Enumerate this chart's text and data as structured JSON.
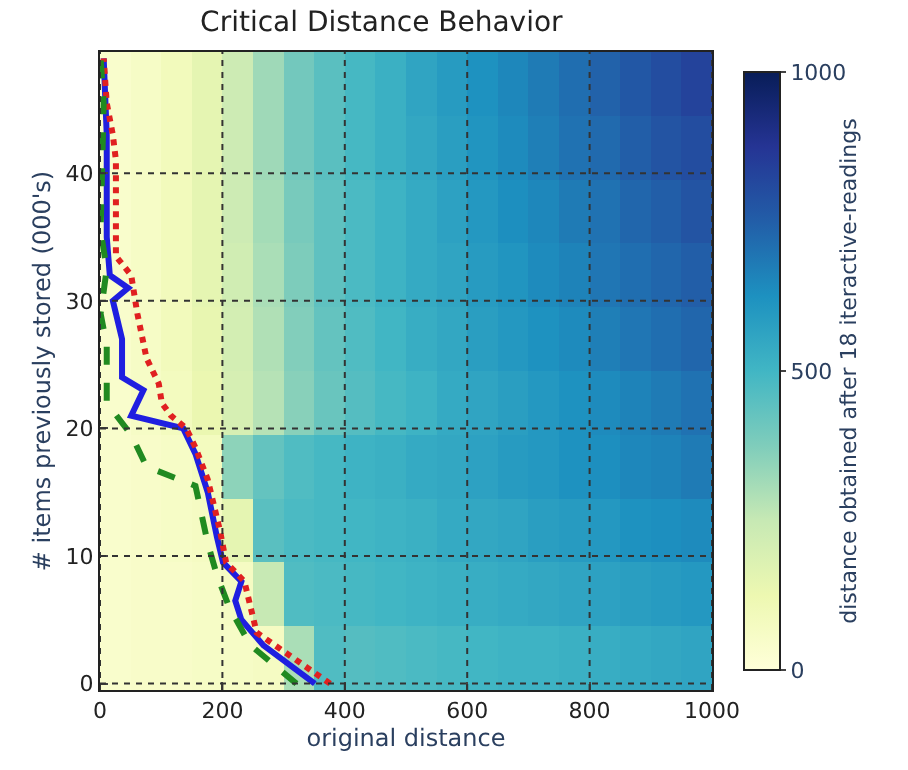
{
  "chart_data": {
    "type": "heatmap",
    "title": "Critical Distance Behavior",
    "xlabel": "original distance",
    "ylabel": "# items previously stored (000's)",
    "clabel": "distance obtained after 18 iteractive-readings",
    "x": [
      25,
      75,
      125,
      175,
      225,
      275,
      325,
      375,
      425,
      475,
      525,
      575,
      625,
      675,
      725,
      775,
      825,
      875,
      925,
      975
    ],
    "y": [
      47,
      42,
      37,
      32,
      27,
      22,
      17,
      12,
      7,
      2
    ],
    "cells": [
      [
        40,
        60,
        90,
        150,
        230,
        320,
        400,
        450,
        490,
        520,
        560,
        590,
        620,
        650,
        680,
        710,
        740,
        770,
        800,
        830
      ],
      [
        40,
        60,
        90,
        150,
        230,
        320,
        400,
        450,
        490,
        520,
        550,
        580,
        610,
        640,
        670,
        700,
        720,
        750,
        780,
        800
      ],
      [
        40,
        60,
        90,
        150,
        230,
        310,
        390,
        440,
        480,
        510,
        540,
        570,
        600,
        630,
        650,
        680,
        700,
        730,
        750,
        780
      ],
      [
        40,
        60,
        90,
        150,
        220,
        300,
        380,
        440,
        480,
        510,
        540,
        560,
        590,
        610,
        640,
        660,
        690,
        710,
        730,
        750
      ],
      [
        40,
        60,
        90,
        140,
        210,
        290,
        370,
        430,
        470,
        500,
        530,
        550,
        580,
        600,
        620,
        640,
        670,
        690,
        710,
        730
      ],
      [
        40,
        60,
        80,
        130,
        200,
        280,
        360,
        420,
        460,
        490,
        510,
        540,
        560,
        580,
        600,
        620,
        640,
        660,
        680,
        700
      ],
      [
        40,
        50,
        60,
        80,
        350,
        430,
        470,
        490,
        510,
        520,
        540,
        550,
        570,
        590,
        600,
        620,
        630,
        650,
        660,
        680
      ],
      [
        40,
        50,
        60,
        70,
        150,
        450,
        480,
        490,
        500,
        510,
        520,
        540,
        550,
        560,
        580,
        590,
        600,
        620,
        630,
        640
      ],
      [
        40,
        50,
        50,
        60,
        70,
        250,
        470,
        480,
        490,
        500,
        510,
        520,
        530,
        540,
        550,
        560,
        570,
        580,
        590,
        600
      ],
      [
        40,
        50,
        50,
        60,
        60,
        70,
        300,
        470,
        460,
        470,
        480,
        490,
        500,
        510,
        510,
        520,
        530,
        540,
        550,
        560
      ]
    ],
    "clim": [
      0,
      1000
    ],
    "cticks": [
      0,
      500,
      1000
    ],
    "xlim": [
      0,
      1000
    ],
    "xticks": [
      0,
      200,
      400,
      600,
      800,
      1000
    ],
    "ylim": [
      -0.5,
      49.5
    ],
    "yticks": [
      0,
      10,
      20,
      30,
      40
    ],
    "grid": true,
    "marker": "none",
    "series": [
      {
        "type": "line",
        "color": "#1f1fe0",
        "line_style": "solid",
        "x": [
          351,
          267,
          231,
          221,
          231,
          201,
          191,
          176,
          156,
          136,
          51,
          71,
          36,
          36,
          21,
          46,
          16,
          11,
          11,
          11,
          6
        ],
        "values": [
          0,
          3,
          5,
          6.5,
          8,
          9.5,
          11.5,
          15,
          18,
          20,
          21,
          23,
          24,
          27,
          30,
          31,
          32,
          35,
          40,
          43,
          49
        ]
      },
      {
        "type": "line",
        "color": "#e02020",
        "line_style": "dotted",
        "x": [
          376,
          316,
          256,
          236,
          206,
          196,
          176,
          156,
          141,
          116,
          101,
          96,
          76,
          61,
          51,
          26,
          26,
          26,
          21,
          11,
          6
        ],
        "values": [
          0,
          2,
          4,
          8,
          9.5,
          12,
          16,
          18.5,
          20,
          21,
          22,
          23.5,
          25.5,
          29,
          32,
          33.5,
          39,
          41,
          43,
          45.5,
          49
        ]
      },
      {
        "type": "line",
        "color": "#208a20",
        "line_style": "dashed",
        "x": [
          321,
          246,
          211,
          191,
          176,
          156,
          76,
          51,
          11,
          11,
          1,
          11,
          1,
          6,
          1
        ],
        "values": [
          0,
          3,
          6,
          8.5,
          11,
          15.5,
          17,
          19.5,
          22,
          26.5,
          29,
          32.5,
          35.5,
          45.5,
          49
        ]
      }
    ]
  }
}
